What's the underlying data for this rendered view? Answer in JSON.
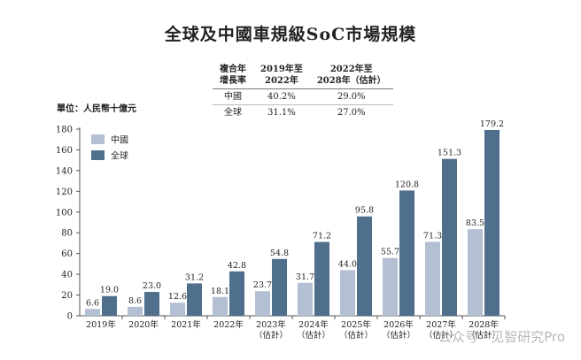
{
  "title": "全球及中國車規級SoC市場規模",
  "unit_label": "單位：人民幣十億元",
  "cagr_table": {
    "headers": [
      "複合年\n增長率",
      "2019年至\n2022年",
      "2022年至\n2028年（估計）"
    ],
    "rows": [
      {
        "region": "中國",
        "v1": "40.2%",
        "v2": "29.0%"
      },
      {
        "region": "全球",
        "v1": "31.1%",
        "v2": "27.0%"
      }
    ]
  },
  "watermark": "公众号 · 见智研究Pro",
  "colors": {
    "china": "#b3bfd3",
    "global": "#4f6f8d",
    "axis": "#555555"
  },
  "chart_data": {
    "type": "bar",
    "categories": [
      "2019年",
      "2020年",
      "2021年",
      "2022年",
      "2023年\n（估計）",
      "2024年\n（估計）",
      "2025年\n（估計）",
      "2026年\n（估計）",
      "2027年\n（估計）",
      "2028年\n（估計）"
    ],
    "series": [
      {
        "name": "中國",
        "values": [
          6.6,
          8.6,
          12.6,
          18.1,
          23.7,
          31.7,
          44.0,
          55.7,
          71.3,
          83.5
        ]
      },
      {
        "name": "全球",
        "values": [
          19.0,
          23.0,
          31.2,
          42.8,
          54.8,
          71.2,
          95.8,
          120.8,
          151.3,
          179.2
        ]
      }
    ],
    "ylim": [
      0,
      180
    ],
    "yticks": [
      0,
      20,
      40,
      60,
      80,
      100,
      120,
      140,
      160,
      180
    ],
    "legend": "top-left",
    "grid": false
  }
}
